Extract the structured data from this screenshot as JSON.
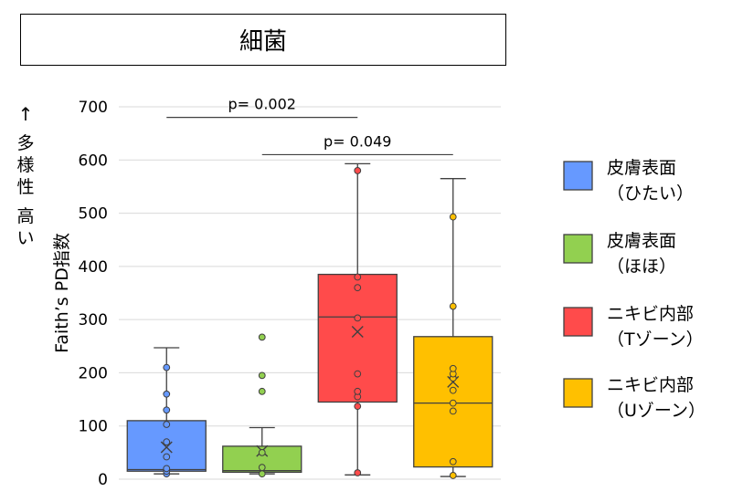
{
  "title": "細菌",
  "chart_data": {
    "type": "box",
    "title": "細菌",
    "ylabel": "Faith’s PD指数",
    "ylabel_arrow": "↑",
    "ylabel_note": "多様性 高い",
    "ylim": [
      0,
      700
    ],
    "yticks": [
      0,
      100,
      200,
      300,
      400,
      500,
      600,
      700
    ],
    "grid": true,
    "legend_position": "right",
    "series": [
      {
        "name_line1": "皮膚表面",
        "name_line2": "（ひたい）",
        "color": "#6699FF",
        "whisker_low": 10,
        "q1": 15,
        "median": 18,
        "q3": 110,
        "whisker_high": 247,
        "mean": 60,
        "points": [
          10,
          15,
          20,
          42,
          70,
          103,
          130,
          160,
          210
        ]
      },
      {
        "name_line1": "皮膚表面",
        "name_line2": "（ほほ）",
        "color": "#92D050",
        "whisker_low": 10,
        "q1": 13,
        "median": 16,
        "q3": 62,
        "whisker_high": 97,
        "mean": 53,
        "points": [
          10,
          22,
          50,
          165,
          195,
          267
        ]
      },
      {
        "name_line1": "ニキビ内部",
        "name_line2": "（Tゾーン）",
        "color": "#FF4B4B",
        "whisker_low": 8,
        "q1": 145,
        "median": 305,
        "q3": 385,
        "whisker_high": 593,
        "mean": 277,
        "points": [
          12,
          137,
          155,
          165,
          198,
          303,
          360,
          380,
          580
        ]
      },
      {
        "name_line1": "ニキビ内部",
        "name_line2": "（Uゾーン）",
        "color": "#FFC000",
        "whisker_low": 5,
        "q1": 23,
        "median": 143,
        "q3": 268,
        "whisker_high": 565,
        "mean": 183,
        "points": [
          7,
          33,
          128,
          143,
          167,
          190,
          198,
          208,
          325,
          493
        ]
      }
    ],
    "annotations": [
      {
        "label": "p= 0.002",
        "from": 0,
        "to": 2,
        "y": 680
      },
      {
        "label": "p= 0.049",
        "from": 1,
        "to": 3,
        "y": 610
      }
    ]
  }
}
